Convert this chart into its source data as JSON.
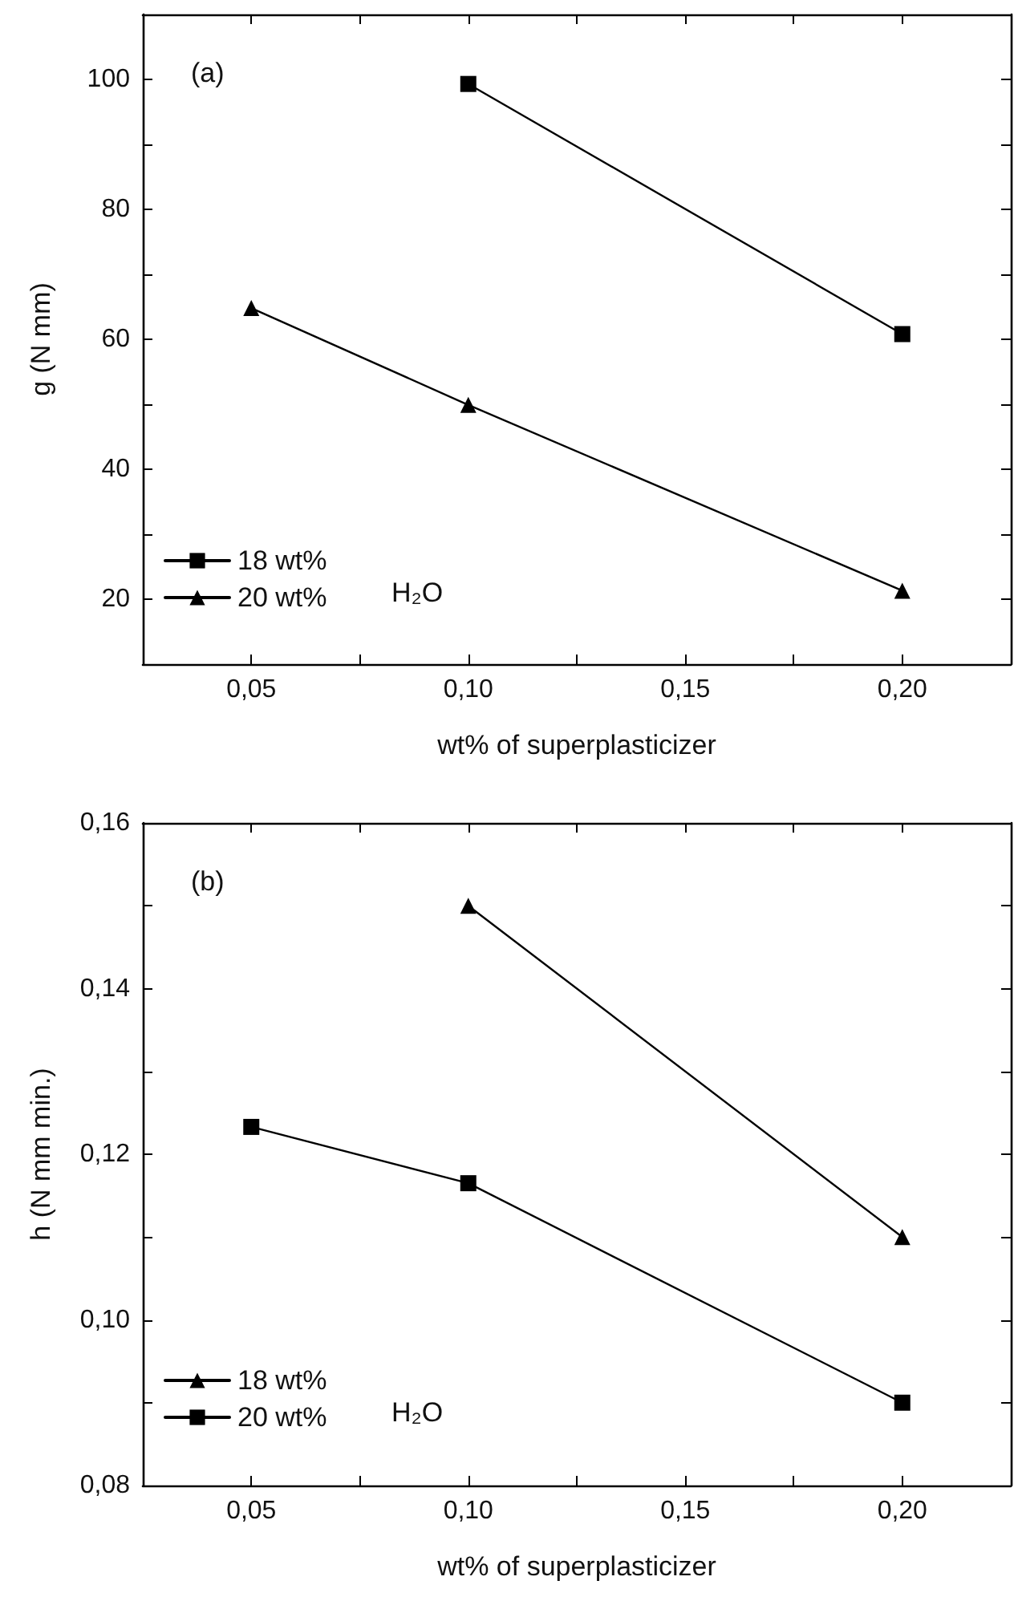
{
  "chart_data": [
    {
      "type": "line",
      "xlabel": "wt% of superplasticizer",
      "ylabel": "g (N mm)",
      "annotations": [
        "(a)"
      ],
      "legend_title": "H₂O",
      "legend": "bottom left",
      "grid": false,
      "line_style": "solid",
      "xlim": [
        0.025,
        0.225
      ],
      "xticks": [
        {
          "value": 0.05,
          "label": "0,05"
        },
        {
          "value": 0.075,
          "label": null
        },
        {
          "value": 0.1,
          "label": "0,10"
        },
        {
          "value": 0.125,
          "label": null
        },
        {
          "value": 0.15,
          "label": "0,15"
        },
        {
          "value": 0.175,
          "label": null
        },
        {
          "value": 0.2,
          "label": "0,20"
        }
      ],
      "ylim": [
        10,
        110
      ],
      "yticks": [
        20,
        {
          "value": 30,
          "label": null
        },
        40,
        {
          "value": 50,
          "label": null
        },
        60,
        {
          "value": 70,
          "label": null
        },
        80,
        {
          "value": 90,
          "label": null
        },
        100
      ],
      "series": [
        {
          "name": "18 wt%",
          "color": "#000000",
          "marker": "square",
          "x": [
            0.1,
            0.2
          ],
          "values": [
            99.3,
            60.8
          ]
        },
        {
          "name": "20 wt%",
          "color": "#000000",
          "marker": "triangle",
          "x": [
            0.05,
            0.1,
            0.2
          ],
          "values": [
            64.8,
            49.9,
            21.3
          ]
        }
      ]
    },
    {
      "type": "line",
      "xlabel": "wt% of superplasticizer",
      "ylabel": "h (N mm min.)",
      "annotations": [
        "(b)"
      ],
      "legend_title": "H₂O",
      "legend": "bottom left",
      "grid": false,
      "line_style": "solid",
      "xlim": [
        0.025,
        0.225
      ],
      "xticks": [
        {
          "value": 0.05,
          "label": "0,05"
        },
        {
          "value": 0.075,
          "label": null
        },
        {
          "value": 0.1,
          "label": "0,10"
        },
        {
          "value": 0.125,
          "label": null
        },
        {
          "value": 0.15,
          "label": "0,15"
        },
        {
          "value": 0.175,
          "label": null
        },
        {
          "value": 0.2,
          "label": "0,20"
        }
      ],
      "ylim": [
        0.08,
        0.16
      ],
      "yticks": [
        {
          "value": 0.08,
          "label": "0,08"
        },
        {
          "value": 0.09,
          "label": null
        },
        {
          "value": 0.1,
          "label": "0,10"
        },
        {
          "value": 0.11,
          "label": null
        },
        {
          "value": 0.12,
          "label": "0,12"
        },
        {
          "value": 0.13,
          "label": null
        },
        {
          "value": 0.14,
          "label": "0,14"
        },
        {
          "value": 0.15,
          "label": null
        },
        {
          "value": 0.16,
          "label": "0,16"
        }
      ],
      "series": [
        {
          "name": "18 wt%",
          "color": "#000000",
          "marker": "triangle",
          "x": [
            0.1,
            0.2
          ],
          "values": [
            0.15,
            0.11
          ]
        },
        {
          "name": "20 wt%",
          "color": "#000000",
          "marker": "square",
          "x": [
            0.05,
            0.1,
            0.2
          ],
          "values": [
            0.1233,
            0.1165,
            0.09
          ]
        }
      ]
    }
  ]
}
